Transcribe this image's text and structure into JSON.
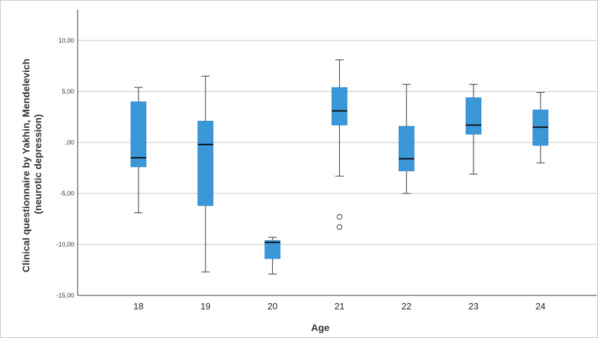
{
  "chart_data": {
    "type": "boxplot",
    "title": "",
    "xlabel": "Age",
    "ylabel_line1": "Clinical questionnaire by Yakhin, Mendelevich",
    "ylabel_line2": "(neurotic depression)",
    "ylim": [
      -15,
      12.5
    ],
    "yticks": [
      {
        "value": 10,
        "label": "10,00"
      },
      {
        "value": 5,
        "label": "5,00"
      },
      {
        "value": 0,
        "label": ",00"
      },
      {
        "value": -5,
        "label": "-5,00"
      },
      {
        "value": -10,
        "label": "-10,00"
      },
      {
        "value": -15,
        "label": "-15,00"
      }
    ],
    "grid": true,
    "box_color": "#3a97d8",
    "categories": [
      "18",
      "19",
      "20",
      "21",
      "22",
      "23",
      "24"
    ],
    "boxes": [
      {
        "category": "18",
        "min": -6.9,
        "q1": -2.4,
        "median": -1.5,
        "q3": 4.0,
        "max": 5.4,
        "outliers": []
      },
      {
        "category": "19",
        "min": -12.7,
        "q1": -6.2,
        "median": -0.2,
        "q3": 2.1,
        "max": 6.5,
        "outliers": []
      },
      {
        "category": "20",
        "min": -12.9,
        "q1": -11.4,
        "median": -9.8,
        "q3": -9.6,
        "max": -9.3,
        "outliers": []
      },
      {
        "category": "21",
        "min": -3.3,
        "q1": 1.7,
        "median": 3.1,
        "q3": 5.4,
        "max": 8.1,
        "outliers": [
          -7.3,
          -8.3
        ]
      },
      {
        "category": "22",
        "min": -5.0,
        "q1": -2.8,
        "median": -1.6,
        "q3": 1.6,
        "max": 5.7,
        "outliers": []
      },
      {
        "category": "23",
        "min": -3.1,
        "q1": 0.8,
        "median": 1.7,
        "q3": 4.4,
        "max": 5.7,
        "outliers": []
      },
      {
        "category": "24",
        "min": -2.0,
        "q1": -0.3,
        "median": 1.5,
        "q3": 3.2,
        "max": 4.9,
        "outliers": []
      }
    ]
  }
}
